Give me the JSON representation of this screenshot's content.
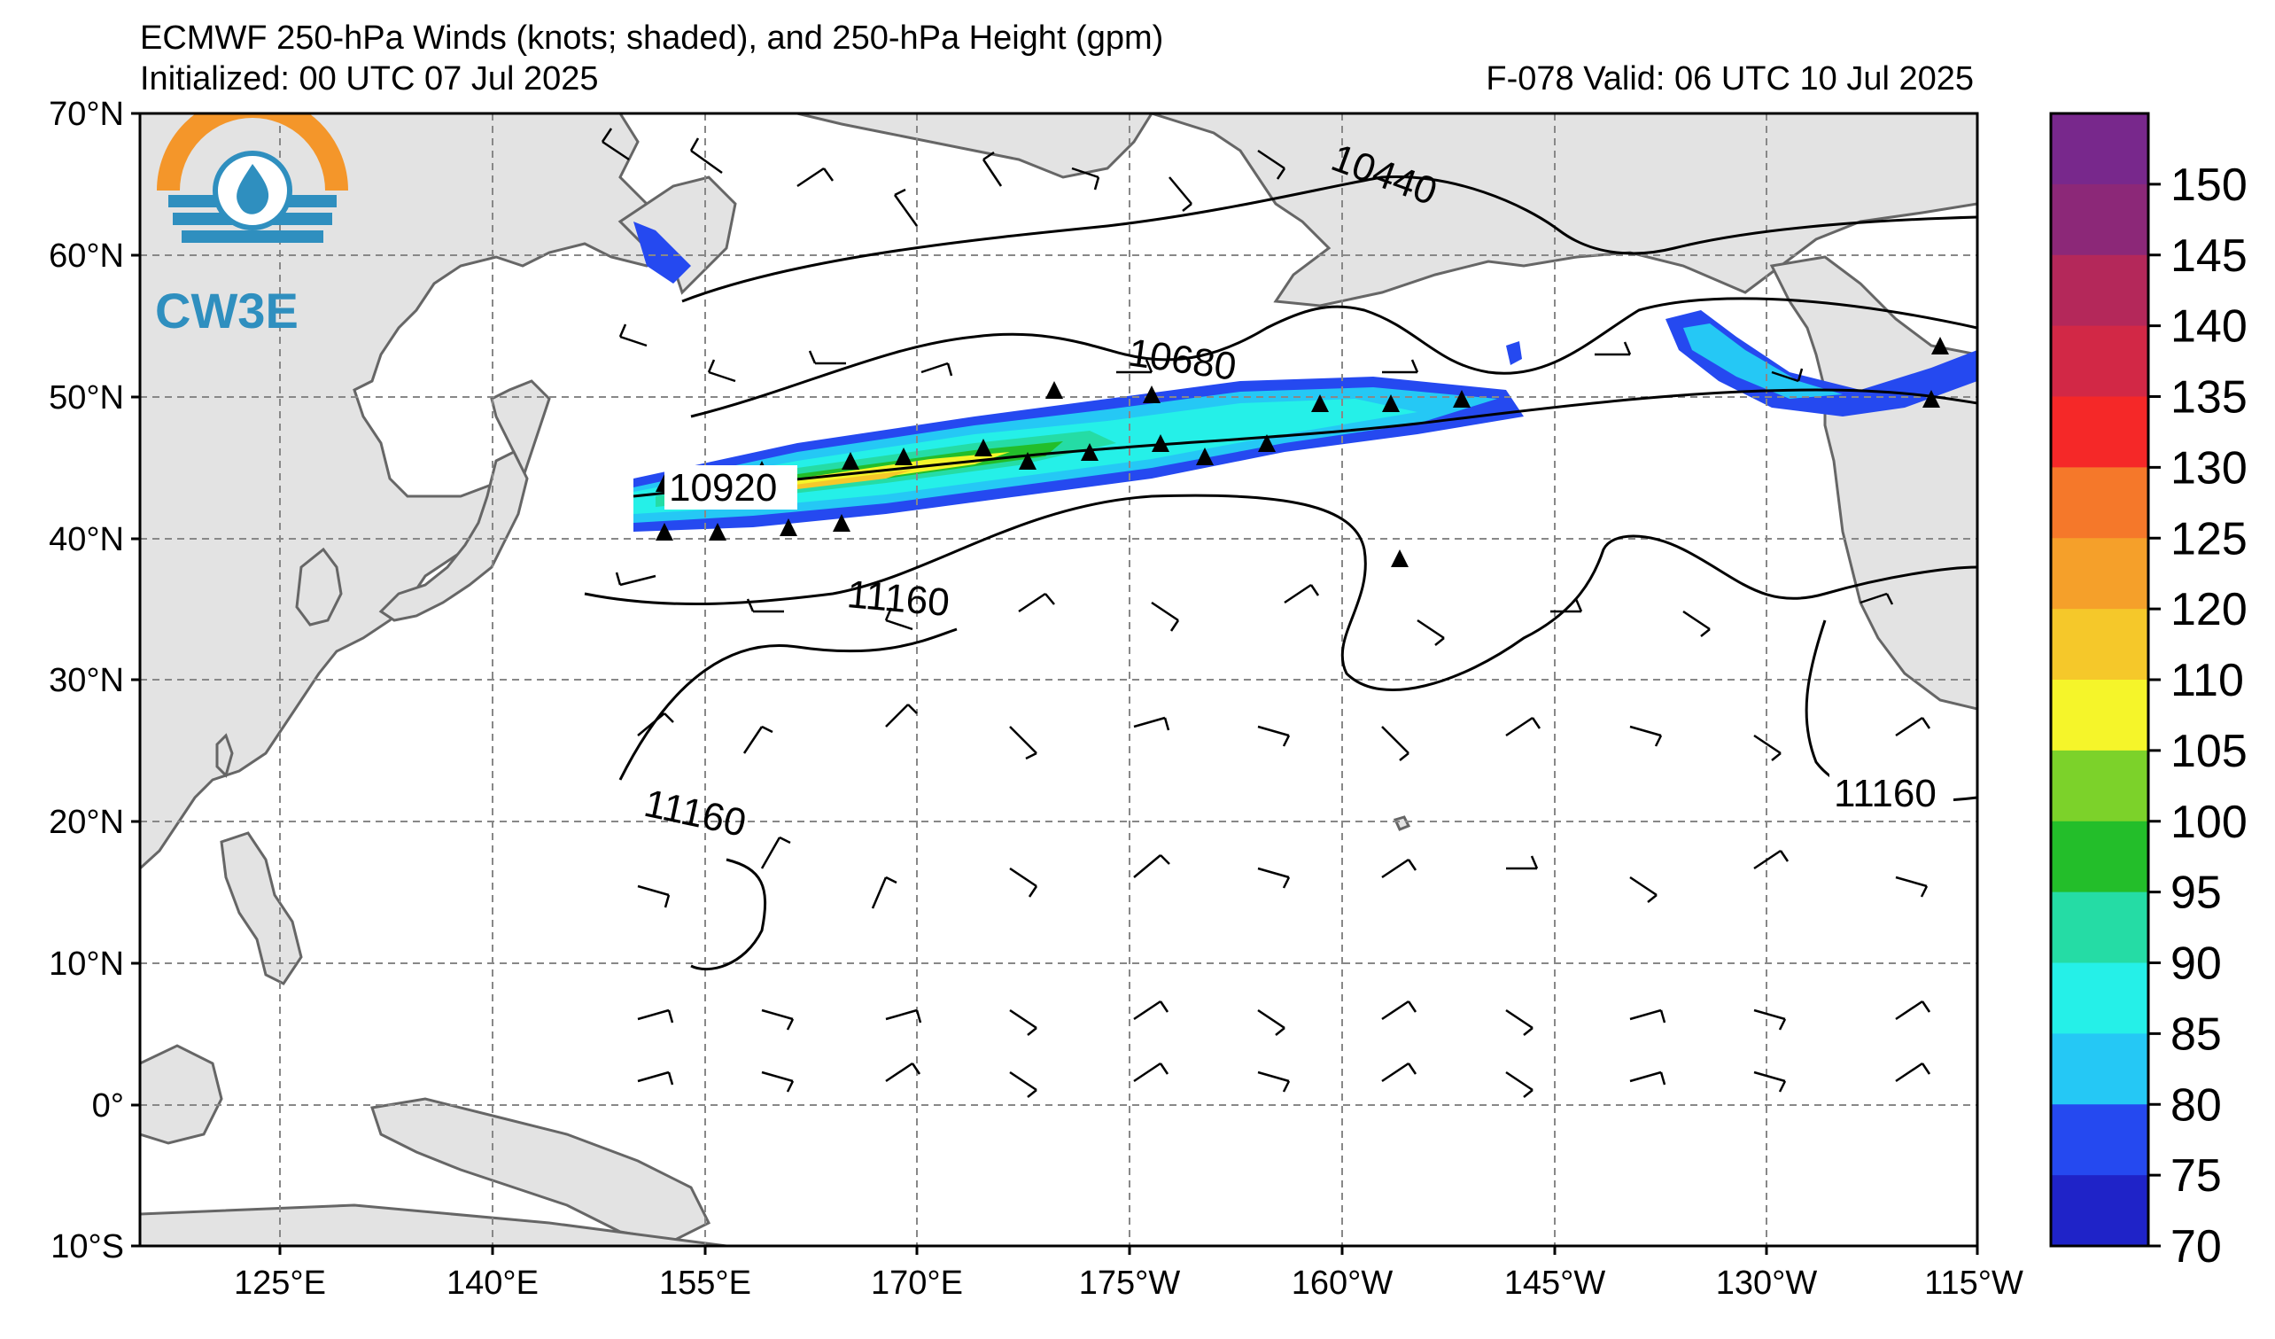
{
  "title": {
    "line1": "ECMWF 250-hPa Winds (knots; shaded), and 250-hPa Height (gpm)",
    "line2": "Initialized: 00 UTC 07 Jul 2025",
    "valid": "F-078  Valid: 06 UTC 10 Jul 2025"
  },
  "logo": {
    "text": "CW3E",
    "icon": "water-drop-sun-icon",
    "colors": {
      "orange": "#F4962A",
      "blue": "#2F8FBF"
    }
  },
  "axes": {
    "lat_labels": [
      "70°N",
      "60°N",
      "50°N",
      "40°N",
      "30°N",
      "20°N",
      "10°N",
      "0°",
      "10°S"
    ],
    "lon_labels": [
      "125°E",
      "140°E",
      "155°E",
      "170°E",
      "175°W",
      "160°W",
      "145°W",
      "130°W",
      "115°W"
    ]
  },
  "colorbar": {
    "ticks": [
      "70",
      "75",
      "80",
      "85",
      "90",
      "95",
      "100",
      "105",
      "110",
      "120",
      "125",
      "130",
      "135",
      "140",
      "145",
      "150"
    ],
    "colors": [
      "#1F23C8",
      "#2549F0",
      "#25C8F5",
      "#25F0E8",
      "#25DCA5",
      "#23BE2A",
      "#7CD22A",
      "#F5F52A",
      "#F5C82A",
      "#F5A02A",
      "#F5782A",
      "#F52828",
      "#D22846",
      "#B4285A",
      "#8C2878",
      "#78288C"
    ]
  },
  "contours": {
    "labels": [
      "10440",
      "10680",
      "10920",
      "11160",
      "11160",
      "11160"
    ]
  }
}
